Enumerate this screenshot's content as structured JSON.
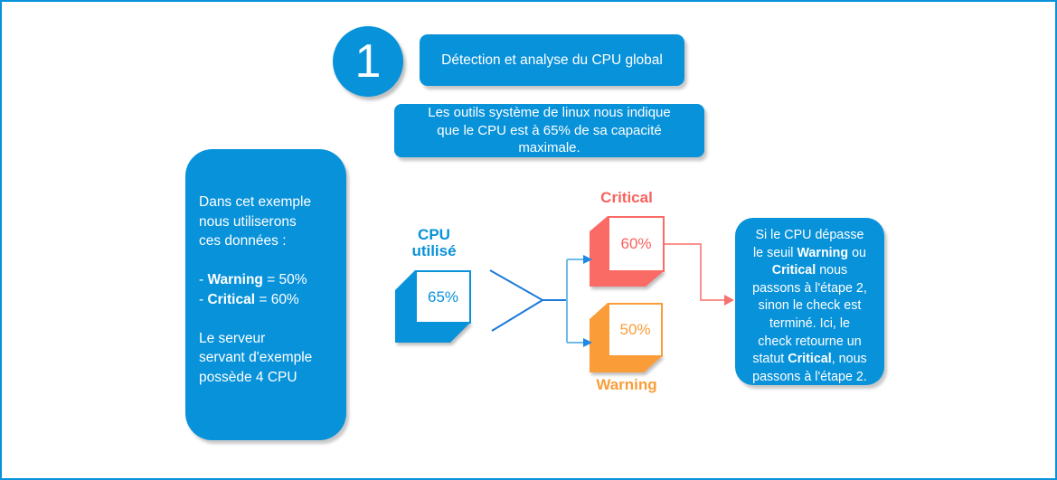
{
  "colors": {
    "blue": "#0892DA",
    "connector_blue_dark": "#1D7AD9",
    "connector_blue_light": "#6FBBE8",
    "arrow_blue": "#1E88E5",
    "red": "#FB6B66",
    "red_text": "#F9625E",
    "connector_red": "#F9918D",
    "orange": "#FA9D39",
    "text_white": "#FFFFFF"
  },
  "step": {
    "number": "1",
    "title": "Détection et analyse du CPU global"
  },
  "intro_box": {
    "text": "Les outils système de linux nous indique\nque le CPU est à 65% de sa capacité\nmaximale."
  },
  "example_box": {
    "segments": [
      {
        "text": "Dans cet exemple\nnous utiliserons\nces données :\n\n- "
      },
      {
        "text": "Warning",
        "bold": true
      },
      {
        "text": " = 50%\n- "
      },
      {
        "text": "Critical",
        "bold": true
      },
      {
        "text": " = 60%\n\nLe serveur\nservant d'exemple\npossède 4 CPU"
      }
    ]
  },
  "cpu": {
    "label": "CPU\nutilisé",
    "value": "65%"
  },
  "critical": {
    "label": "Critical",
    "value": "60%"
  },
  "warning": {
    "label": "Warning",
    "value": "50%"
  },
  "explanation_box": {
    "segments": [
      {
        "text": "Si le CPU dépasse\nle seuil "
      },
      {
        "text": "Warning",
        "bold": true
      },
      {
        "text": " ou\n"
      },
      {
        "text": "Critical",
        "bold": true
      },
      {
        "text": " nous\npassons à l'étape 2,\nsinon le check est\nterminé. Ici, le\ncheck retourne un\nstatut "
      },
      {
        "text": "Critical",
        "bold": true
      },
      {
        "text": ", nous\npassons à l'étape 2."
      }
    ]
  }
}
